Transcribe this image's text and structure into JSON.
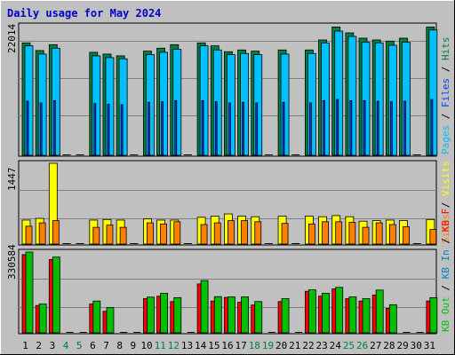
{
  "title": "Daily usage for May 2024",
  "colors": {
    "frame_bg": "#c0c0c0",
    "title": "#0000c8",
    "hits": "#008040",
    "files": "#0040ff",
    "pages": "#00c0ff",
    "visits": "#ffff00",
    "sites": "#ff8000",
    "kb_out": "#00c000",
    "kb_in": "#0080c0",
    "kb_f": "#ff0000",
    "weekend_tick": "#008040",
    "weekday_tick": "#000000"
  },
  "chart_data": {
    "type": "bar",
    "x": [
      "1",
      "2",
      "3",
      "4",
      "5",
      "6",
      "7",
      "8",
      "9",
      "10",
      "11",
      "12",
      "13",
      "14",
      "15",
      "16",
      "17",
      "18",
      "19",
      "20",
      "21",
      "22",
      "23",
      "24",
      "25",
      "26",
      "27",
      "28",
      "29",
      "30",
      "31"
    ],
    "weekend_days": [
      "4",
      "5",
      "11",
      "12",
      "18",
      "19",
      "25",
      "26"
    ],
    "panels": [
      {
        "max_label": "22014",
        "ymax": 22014,
        "legend": [
          "Hits",
          "Files",
          "Pages"
        ],
        "series": [
          {
            "name": "Hits",
            "values": [
              19100,
              17800,
              18800,
              0,
              0,
              17500,
              17200,
              16900,
              0,
              17700,
              18200,
              18800,
              0,
              19100,
              18600,
              17600,
              17900,
              17700,
              0,
              17900,
              0,
              17900,
              19600,
              21800,
              20800,
              19900,
              19600,
              19400,
              19900,
              0,
              21800
            ]
          },
          {
            "name": "Files",
            "values": [
              9200,
              8900,
              9300,
              0,
              0,
              8800,
              8700,
              8600,
              0,
              9000,
              9100,
              9300,
              0,
              9300,
              9100,
              8900,
              9000,
              8900,
              0,
              9000,
              0,
              8900,
              9300,
              9500,
              9300,
              9300,
              9200,
              9100,
              9200,
              0,
              9500
            ]
          },
          {
            "name": "Pages",
            "values": [
              18600,
              17200,
              18200,
              0,
              0,
              16900,
              16600,
              16400,
              0,
              17100,
              17500,
              18000,
              0,
              18600,
              17900,
              17100,
              17300,
              17100,
              0,
              17200,
              0,
              17300,
              19100,
              21100,
              20200,
              19200,
              19100,
              18700,
              19200,
              0,
              21300
            ]
          }
        ]
      },
      {
        "max_label": "1447",
        "ymax": 1447,
        "legend": [
          "Visits",
          "Sites"
        ],
        "series": [
          {
            "name": "Visits",
            "values": [
              430,
              460,
              1447,
              0,
              0,
              430,
              440,
              430,
              0,
              450,
              430,
              430,
              0,
              480,
              500,
              540,
              500,
              490,
              0,
              500,
              0,
              500,
              490,
              510,
              490,
              410,
              420,
              430,
              420,
              0,
              440
            ]
          },
          {
            "name": "Sites",
            "values": [
              320,
              380,
              420,
              0,
              0,
              300,
              340,
              300,
              0,
              380,
              360,
              400,
              0,
              350,
              380,
              420,
              420,
              400,
              0,
              370,
              0,
              360,
              400,
              400,
              390,
              300,
              380,
              350,
              310,
              0,
              260
            ]
          }
        ]
      },
      {
        "max_label": "330584",
        "ymax": 330584,
        "legend": [
          "KB F",
          "KB In",
          "KB Out"
        ],
        "series": [
          {
            "name": "KB F",
            "values": [
              320000,
              112000,
              300000,
              0,
              0,
              118000,
              88000,
              0,
              0,
              140000,
              150000,
              128000,
              0,
              200000,
              130000,
              145000,
              125000,
              114000,
              0,
              128000,
              0,
              170000,
              150000,
              180000,
              140000,
              130000,
              155000,
              100000,
              0,
              0,
              130000
            ]
          },
          {
            "name": "KB In",
            "values": [
              0,
              0,
              0,
              0,
              0,
              0,
              0,
              0,
              0,
              0,
              0,
              0,
              0,
              0,
              0,
              0,
              0,
              0,
              0,
              0,
              0,
              0,
              0,
              0,
              0,
              0,
              0,
              0,
              0,
              0,
              0
            ]
          },
          {
            "name": "KB Out",
            "values": [
              330584,
              118000,
              310000,
              0,
              0,
              130000,
              103000,
              0,
              0,
              146000,
              162000,
              144000,
              0,
              214000,
              148000,
              147000,
              147000,
              128000,
              0,
              140000,
              0,
              176000,
              162000,
              186000,
              147000,
              140000,
              175000,
              115000,
              0,
              0,
              144000
            ]
          }
        ]
      }
    ]
  }
}
